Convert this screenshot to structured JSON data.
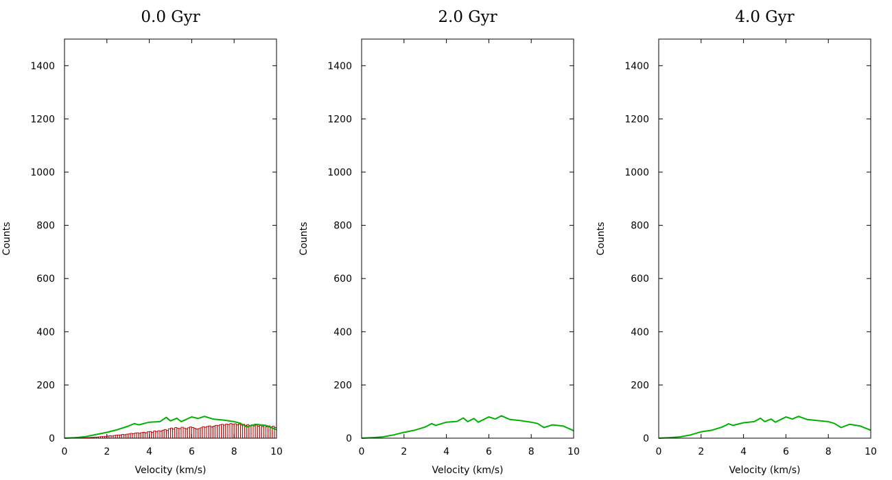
{
  "chart_data": [
    {
      "type": "line",
      "title": "0.0 Gyr",
      "xlabel": "Velocity (km/s)",
      "ylabel": "Counts",
      "xlim": [
        0,
        10
      ],
      "ylim": [
        0,
        1500
      ],
      "xticks": [
        "0",
        "2",
        "4",
        "6",
        "8",
        "10"
      ],
      "yticks": [
        "0",
        "200",
        "400",
        "600",
        "800",
        "1000",
        "1200",
        "1400"
      ],
      "grid": false,
      "colors": {
        "line": "#00b000",
        "histogram": "#c00000"
      },
      "series": [
        {
          "kind": "line",
          "x": [
            0,
            0.5,
            1.0,
            1.5,
            2.0,
            2.5,
            3.0,
            3.3,
            3.5,
            4.0,
            4.5,
            4.8,
            5.0,
            5.3,
            5.5,
            6.0,
            6.3,
            6.6,
            7.0,
            7.5,
            8.0,
            8.3,
            8.6,
            9.0,
            9.5,
            10.0
          ],
          "y": [
            0,
            2,
            6,
            14,
            22,
            32,
            45,
            55,
            50,
            60,
            62,
            78,
            65,
            75,
            62,
            80,
            74,
            82,
            72,
            68,
            62,
            56,
            42,
            52,
            48,
            32
          ]
        },
        {
          "kind": "histogram",
          "bin_width": 0.1,
          "x": [
            0.05,
            0.15,
            0.25,
            0.35,
            0.45,
            0.55,
            0.65,
            0.75,
            0.85,
            0.95,
            1.05,
            1.15,
            1.25,
            1.35,
            1.45,
            1.55,
            1.65,
            1.75,
            1.85,
            1.95,
            2.05,
            2.15,
            2.25,
            2.35,
            2.45,
            2.55,
            2.65,
            2.75,
            2.85,
            2.95,
            3.05,
            3.15,
            3.25,
            3.35,
            3.45,
            3.55,
            3.65,
            3.75,
            3.85,
            3.95,
            4.05,
            4.15,
            4.25,
            4.35,
            4.45,
            4.55,
            4.65,
            4.75,
            4.85,
            4.95,
            5.05,
            5.15,
            5.25,
            5.35,
            5.45,
            5.55,
            5.65,
            5.75,
            5.85,
            5.95,
            6.05,
            6.15,
            6.25,
            6.35,
            6.45,
            6.55,
            6.65,
            6.75,
            6.85,
            6.95,
            7.05,
            7.15,
            7.25,
            7.35,
            7.45,
            7.55,
            7.65,
            7.75,
            7.85,
            7.95,
            8.05,
            8.15,
            8.25,
            8.35,
            8.45,
            8.55,
            8.65,
            8.75,
            8.85,
            8.95,
            9.05,
            9.15,
            9.25,
            9.35,
            9.45,
            9.55,
            9.65,
            9.75,
            9.85,
            9.95
          ],
          "y": [
            0,
            0,
            0,
            0,
            0,
            0,
            0,
            0,
            1,
            1,
            2,
            2,
            3,
            3,
            4,
            4,
            5,
            6,
            6,
            7,
            8,
            9,
            8,
            10,
            11,
            12,
            12,
            14,
            13,
            15,
            16,
            18,
            17,
            19,
            20,
            18,
            21,
            22,
            20,
            24,
            25,
            22,
            27,
            24,
            28,
            26,
            30,
            32,
            29,
            35,
            38,
            34,
            40,
            37,
            36,
            41,
            38,
            35,
            39,
            42,
            40,
            37,
            34,
            36,
            39,
            43,
            41,
            44,
            46,
            42,
            45,
            48,
            47,
            50,
            52,
            49,
            53,
            51,
            55,
            52,
            54,
            50,
            53,
            49,
            52,
            48,
            51,
            47,
            50,
            46,
            49,
            45,
            48,
            44,
            47,
            43,
            46,
            42,
            45,
            40
          ]
        }
      ]
    },
    {
      "type": "line",
      "title": "2.0 Gyr",
      "xlabel": "Velocity (km/s)",
      "ylabel": "Counts",
      "xlim": [
        0,
        10
      ],
      "ylim": [
        0,
        1500
      ],
      "xticks": [
        "0",
        "2",
        "4",
        "6",
        "8",
        "10"
      ],
      "yticks": [
        "0",
        "200",
        "400",
        "600",
        "800",
        "1000",
        "1200",
        "1400"
      ],
      "grid": false,
      "colors": {
        "line": "#00b000"
      },
      "series": [
        {
          "kind": "line",
          "x": [
            0,
            0.5,
            1.0,
            1.5,
            2.0,
            2.5,
            3.0,
            3.3,
            3.5,
            4.0,
            4.5,
            4.8,
            5.0,
            5.3,
            5.5,
            6.0,
            6.3,
            6.6,
            7.0,
            7.5,
            8.0,
            8.3,
            8.6,
            9.0,
            9.5,
            10.0
          ],
          "y": [
            0,
            2,
            5,
            12,
            22,
            30,
            42,
            55,
            48,
            60,
            63,
            76,
            62,
            74,
            60,
            80,
            72,
            84,
            70,
            66,
            60,
            55,
            40,
            50,
            46,
            28
          ]
        }
      ]
    },
    {
      "type": "line",
      "title": "4.0 Gyr",
      "xlabel": "Velocity (km/s)",
      "ylabel": "Counts",
      "xlim": [
        0,
        10
      ],
      "ylim": [
        0,
        1500
      ],
      "xticks": [
        "0",
        "2",
        "4",
        "6",
        "8",
        "10"
      ],
      "yticks": [
        "0",
        "200",
        "400",
        "600",
        "800",
        "1000",
        "1200",
        "1400"
      ],
      "grid": false,
      "colors": {
        "line": "#00b000"
      },
      "series": [
        {
          "kind": "line",
          "x": [
            0,
            0.5,
            1.0,
            1.5,
            2.0,
            2.5,
            3.0,
            3.3,
            3.5,
            4.0,
            4.5,
            4.8,
            5.0,
            5.3,
            5.5,
            6.0,
            6.3,
            6.6,
            7.0,
            7.5,
            8.0,
            8.3,
            8.6,
            9.0,
            9.5,
            10.0
          ],
          "y": [
            0,
            2,
            5,
            12,
            24,
            30,
            42,
            54,
            48,
            58,
            62,
            75,
            62,
            72,
            60,
            80,
            72,
            82,
            70,
            66,
            62,
            55,
            40,
            52,
            46,
            30
          ]
        }
      ]
    }
  ]
}
